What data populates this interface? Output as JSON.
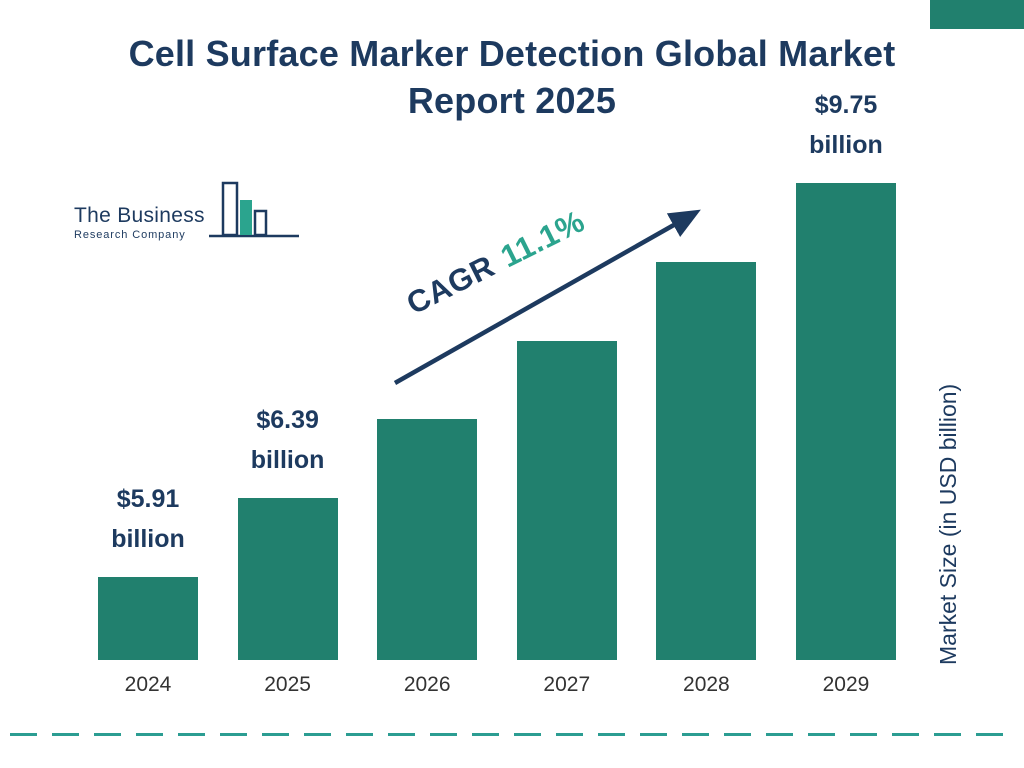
{
  "colors": {
    "navy": "#1d3a5f",
    "bar_teal": "#21806e",
    "accent_teal": "#2ba48e",
    "dash_teal": "#2b9d92",
    "year_text": "#333333",
    "background": "#ffffff"
  },
  "header": {
    "title_line1": "Cell Surface Marker Detection Global Market",
    "title_line2": "Report 2025"
  },
  "logo": {
    "line1": "The Business",
    "line2": "Research Company"
  },
  "annotations": {
    "cagr_label": "CAGR",
    "cagr_value": "11.1%",
    "y_axis_label": "Market Size (in USD billion)"
  },
  "chart_data": {
    "type": "bar",
    "title": "Cell Surface Marker Detection Global Market Report 2025",
    "categories": [
      "2024",
      "2025",
      "2026",
      "2027",
      "2028",
      "2029"
    ],
    "values": [
      5.91,
      6.39,
      7.1,
      7.89,
      8.77,
      9.75
    ],
    "unit": "USD billion",
    "xlabel": "",
    "ylabel": "Market Size (in USD billion)",
    "cagr": "11.1%",
    "grid": false,
    "legend": false,
    "bar_color": "#21806e",
    "value_labels": [
      {
        "index": 0,
        "amount": "$5.91",
        "unit": "billion"
      },
      {
        "index": 1,
        "amount": "$6.39",
        "unit": "billion"
      },
      {
        "index": 5,
        "amount": "$9.75",
        "unit": "billion"
      }
    ]
  }
}
